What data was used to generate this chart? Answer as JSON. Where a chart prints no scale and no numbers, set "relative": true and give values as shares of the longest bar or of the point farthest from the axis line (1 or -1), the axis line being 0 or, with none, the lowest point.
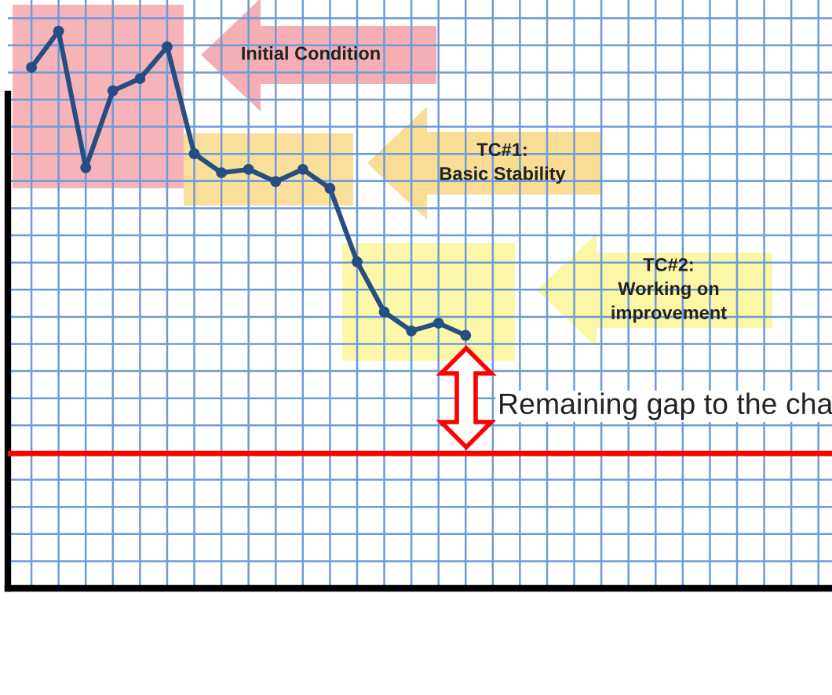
{
  "chart_data": {
    "type": "line",
    "relative": true,
    "categories": [
      null,
      null,
      null,
      null,
      null,
      null,
      null,
      null,
      null,
      null,
      null,
      null,
      null,
      null,
      null,
      null,
      null
    ],
    "series": [
      {
        "color": "#254e82",
        "values": [
          0.935,
          1,
          0.755,
          0.893,
          0.915,
          0.972,
          0.78,
          0.746,
          0.752,
          0.73,
          0.752,
          0.718,
          0.586,
          0.496,
          0.462,
          0.476,
          0.454
        ]
      }
    ],
    "marker": "circle",
    "line_style": "solid",
    "grid": true,
    "legend": false,
    "tick_labels": false,
    "ref_lines": [
      {
        "axis": "y",
        "value": 0.242,
        "color": "#ff0000",
        "line_style": "solid"
      }
    ],
    "annotations": [
      "Initial Condition",
      "TC#1:\nBasic Stability",
      "TC#2:\nWorking on\nimprovement",
      "Remaining gap to the cha"
    ]
  }
}
